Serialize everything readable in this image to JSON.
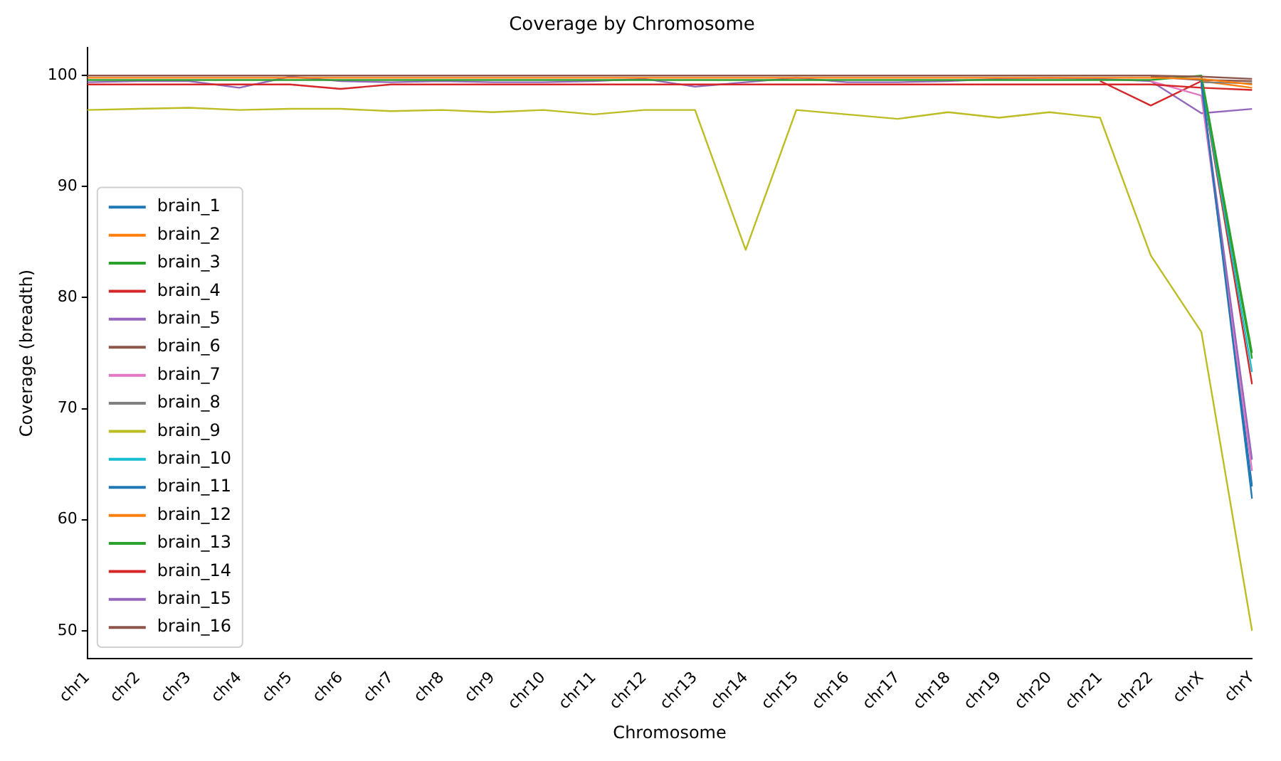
{
  "chart_data": {
    "type": "line",
    "title": "Coverage by Chromosome",
    "xlabel": "Chromosome",
    "ylabel": "Coverage (breadth)",
    "categories": [
      "chr1",
      "chr2",
      "chr3",
      "chr4",
      "chr5",
      "chr6",
      "chr7",
      "chr8",
      "chr9",
      "chr10",
      "chr11",
      "chr12",
      "chr13",
      "chr14",
      "chr15",
      "chr16",
      "chr17",
      "chr18",
      "chr19",
      "chr20",
      "chr21",
      "chr22",
      "chrX",
      "chrY"
    ],
    "series": [
      {
        "name": "brain_1",
        "color": "#1f77b4",
        "values": [
          null,
          null,
          null,
          null,
          null,
          null,
          null,
          null,
          null,
          null,
          null,
          null,
          null,
          null,
          null,
          null,
          null,
          null,
          null,
          null,
          null,
          null,
          99.4,
          61.9
        ]
      },
      {
        "name": "brain_2",
        "color": "#ff7f0e",
        "values": [
          99.8,
          99.8,
          99.8,
          99.8,
          99.8,
          99.8,
          99.8,
          99.8,
          99.8,
          99.8,
          99.8,
          99.8,
          99.8,
          99.8,
          99.8,
          99.8,
          99.8,
          99.8,
          99.8,
          99.8,
          99.8,
          99.8,
          99.7,
          99.2
        ]
      },
      {
        "name": "brain_3",
        "color": "#2ca02c",
        "values": [
          null,
          null,
          null,
          null,
          null,
          null,
          null,
          null,
          null,
          null,
          null,
          null,
          null,
          null,
          null,
          null,
          null,
          null,
          null,
          null,
          null,
          null,
          99.8,
          74.5
        ]
      },
      {
        "name": "brain_4",
        "color": "#d62728",
        "values": [
          99.2,
          99.2,
          99.2,
          99.2,
          99.2,
          98.8,
          99.2,
          99.2,
          99.2,
          99.2,
          99.2,
          99.2,
          99.2,
          99.2,
          99.2,
          99.2,
          99.2,
          99.2,
          99.2,
          99.2,
          99.2,
          99.2,
          98.9,
          98.7
        ]
      },
      {
        "name": "brain_5",
        "color": "#9467bd",
        "values": [
          null,
          null,
          null,
          null,
          null,
          null,
          null,
          null,
          null,
          null,
          null,
          null,
          null,
          null,
          null,
          null,
          null,
          null,
          null,
          null,
          null,
          null,
          99.0,
          65.4
        ]
      },
      {
        "name": "brain_6",
        "color": "#8c564b",
        "values": [
          100.0,
          100.0,
          100.0,
          100.0,
          100.0,
          100.0,
          100.0,
          100.0,
          100.0,
          100.0,
          100.0,
          100.0,
          100.0,
          100.0,
          100.0,
          100.0,
          100.0,
          100.0,
          100.0,
          100.0,
          100.0,
          100.0,
          99.9,
          99.7
        ]
      },
      {
        "name": "brain_7",
        "color": "#e377c2",
        "values": [
          null,
          null,
          null,
          null,
          null,
          null,
          null,
          null,
          null,
          null,
          null,
          null,
          null,
          null,
          null,
          null,
          null,
          null,
          null,
          null,
          null,
          99.5,
          98.2,
          64.4
        ]
      },
      {
        "name": "brain_8",
        "color": "#7f7f7f",
        "values": [
          null,
          null,
          null,
          null,
          null,
          null,
          null,
          null,
          null,
          null,
          null,
          null,
          null,
          null,
          null,
          null,
          null,
          null,
          null,
          null,
          null,
          null,
          99.4,
          99.3
        ]
      },
      {
        "name": "brain_9",
        "color": "#bcbd22",
        "values": [
          96.9,
          97.0,
          97.1,
          96.9,
          97.0,
          97.0,
          96.8,
          96.9,
          96.7,
          96.9,
          96.5,
          96.9,
          96.9,
          84.3,
          96.9,
          96.5,
          96.1,
          96.7,
          96.2,
          96.7,
          96.2,
          83.8,
          76.9,
          50.0
        ]
      },
      {
        "name": "brain_10",
        "color": "#17becf",
        "values": [
          null,
          null,
          null,
          null,
          null,
          null,
          null,
          null,
          null,
          null,
          null,
          null,
          null,
          null,
          null,
          null,
          null,
          null,
          null,
          null,
          null,
          null,
          99.6,
          73.3
        ]
      },
      {
        "name": "brain_11",
        "color": "#1f77b4",
        "values": [
          null,
          null,
          null,
          null,
          null,
          null,
          null,
          null,
          null,
          null,
          null,
          null,
          null,
          null,
          null,
          null,
          null,
          null,
          null,
          null,
          null,
          null,
          99.2,
          63.0
        ]
      },
      {
        "name": "brain_12",
        "color": "#ff7f0e",
        "values": [
          null,
          null,
          null,
          null,
          null,
          null,
          null,
          null,
          null,
          null,
          null,
          null,
          null,
          null,
          null,
          null,
          null,
          null,
          null,
          null,
          null,
          null,
          99.5,
          98.9
        ]
      },
      {
        "name": "brain_13",
        "color": "#2ca02c",
        "values": [
          99.6,
          99.6,
          99.6,
          99.6,
          99.6,
          99.6,
          99.6,
          99.6,
          99.6,
          99.6,
          99.6,
          99.6,
          99.6,
          99.6,
          99.6,
          99.6,
          99.6,
          99.6,
          99.6,
          99.6,
          99.6,
          99.6,
          100.0,
          75.0
        ]
      },
      {
        "name": "brain_14",
        "color": "#d62728",
        "values": [
          null,
          null,
          null,
          null,
          null,
          null,
          null,
          null,
          null,
          null,
          null,
          null,
          null,
          null,
          null,
          null,
          null,
          null,
          null,
          null,
          99.5,
          97.3,
          99.5,
          72.2
        ]
      },
      {
        "name": "brain_15",
        "color": "#9467bd",
        "values": [
          99.4,
          99.5,
          99.5,
          98.9,
          99.9,
          99.5,
          99.4,
          99.5,
          99.4,
          99.4,
          99.5,
          99.7,
          99.0,
          99.4,
          99.8,
          99.4,
          99.4,
          99.5,
          99.7,
          99.8,
          99.7,
          99.5,
          96.6,
          97.0
        ]
      },
      {
        "name": "brain_16",
        "color": "#8c564b",
        "values": [
          null,
          null,
          null,
          null,
          null,
          null,
          null,
          null,
          null,
          null,
          null,
          null,
          null,
          null,
          null,
          null,
          null,
          null,
          null,
          null,
          null,
          99.9,
          99.6,
          99.5
        ]
      }
    ],
    "ylim": [
      47.5,
      102.5
    ],
    "yticks": [
      50,
      60,
      70,
      80,
      90,
      100
    ],
    "grid": false,
    "legend": "bottom left"
  }
}
